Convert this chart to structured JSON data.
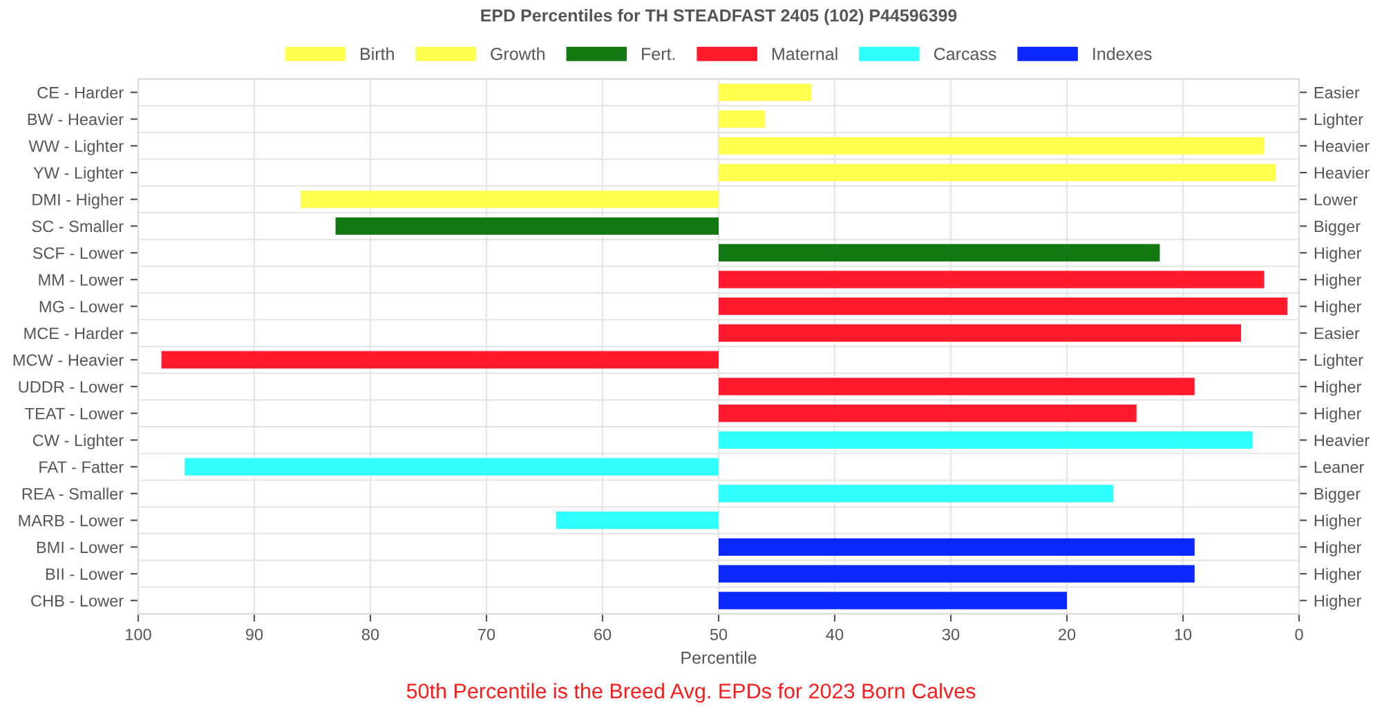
{
  "chart_data": {
    "type": "bar",
    "orientation": "horizontal",
    "title": "EPD Percentiles for TH STEADFAST 2405 (102) P44596399",
    "xlabel": "Percentile",
    "categories": [
      "CE - Harder",
      "BW - Heavier",
      "WW - Lighter",
      "YW - Lighter",
      "DMI - Higher",
      "SC - Smaller",
      "SCF - Lower",
      "MM - Lower",
      "MG - Lower",
      "MCE - Harder",
      "MCW - Heavier",
      "UDDR - Lower",
      "TEAT - Lower",
      "CW - Lighter",
      "FAT - Fatter",
      "REA - Smaller",
      "MARB - Lower",
      "BMI - Lower",
      "BII - Lower",
      "CHB - Lower"
    ],
    "y2_categories": [
      "Easier",
      "Lighter",
      "Heavier",
      "Heavier",
      "Lower",
      "Bigger",
      "Higher",
      "Higher",
      "Higher",
      "Easier",
      "Lighter",
      "Higher",
      "Higher",
      "Heavier",
      "Leaner",
      "Bigger",
      "Higher",
      "Higher",
      "Higher",
      "Higher"
    ],
    "series": [
      {
        "name": "Birth",
        "color": "#ffff4d",
        "base": [
          50,
          50,
          null,
          null,
          null,
          null,
          null,
          null,
          null,
          null,
          null,
          null,
          null,
          null,
          null,
          null,
          null,
          null,
          null,
          null
        ],
        "values": [
          -8,
          -4,
          null,
          null,
          null,
          null,
          null,
          null,
          null,
          null,
          null,
          null,
          null,
          null,
          null,
          null,
          null,
          null,
          null,
          null
        ]
      },
      {
        "name": "Growth",
        "color": "#ffff4d",
        "base": [
          null,
          null,
          50,
          50,
          50,
          null,
          null,
          null,
          null,
          null,
          null,
          null,
          null,
          null,
          null,
          null,
          null,
          null,
          null,
          null
        ],
        "values": [
          null,
          null,
          -47,
          -48,
          36,
          null,
          null,
          null,
          null,
          null,
          null,
          null,
          null,
          null,
          null,
          null,
          null,
          null,
          null,
          null
        ]
      },
      {
        "name": "Fert.",
        "color": "#127812",
        "base": [
          null,
          null,
          null,
          null,
          null,
          50,
          50,
          null,
          null,
          null,
          null,
          null,
          null,
          null,
          null,
          null,
          null,
          null,
          null,
          null
        ],
        "values": [
          null,
          null,
          null,
          null,
          null,
          33,
          -38,
          null,
          null,
          null,
          null,
          null,
          null,
          null,
          null,
          null,
          null,
          null,
          null,
          null
        ]
      },
      {
        "name": "Maternal",
        "color": "#ff1a2e",
        "base": [
          null,
          null,
          null,
          null,
          null,
          null,
          null,
          50,
          50,
          50,
          50,
          50,
          50,
          null,
          null,
          null,
          null,
          null,
          null,
          null
        ],
        "values": [
          null,
          null,
          null,
          null,
          null,
          null,
          null,
          -47,
          -49,
          -45,
          48,
          -41,
          -36,
          null,
          null,
          null,
          null,
          null,
          null,
          null
        ]
      },
      {
        "name": "Carcass",
        "color": "#2effff",
        "base": [
          null,
          null,
          null,
          null,
          null,
          null,
          null,
          null,
          null,
          null,
          null,
          null,
          null,
          50,
          50,
          50,
          50,
          null,
          null,
          null
        ],
        "values": [
          null,
          null,
          null,
          null,
          null,
          null,
          null,
          null,
          null,
          null,
          null,
          null,
          null,
          -46,
          46,
          -34,
          14,
          null,
          null,
          null
        ]
      },
      {
        "name": "Indexes",
        "color": "#0a28ff",
        "base": [
          null,
          null,
          null,
          null,
          null,
          null,
          null,
          null,
          null,
          null,
          null,
          null,
          null,
          null,
          null,
          null,
          null,
          50,
          50,
          50
        ],
        "values": [
          null,
          null,
          null,
          null,
          null,
          null,
          null,
          null,
          null,
          null,
          null,
          null,
          null,
          null,
          null,
          null,
          null,
          -41,
          -41,
          -30
        ]
      }
    ],
    "xlim": [
      100,
      0
    ],
    "xticks": [
      100,
      90,
      80,
      70,
      60,
      50,
      40,
      30,
      20,
      10,
      0
    ],
    "grid": true,
    "legend": "top",
    "annotations": [
      "50th Percentile is the Breed Avg. EPDs for 2023 Born Calves"
    ]
  }
}
